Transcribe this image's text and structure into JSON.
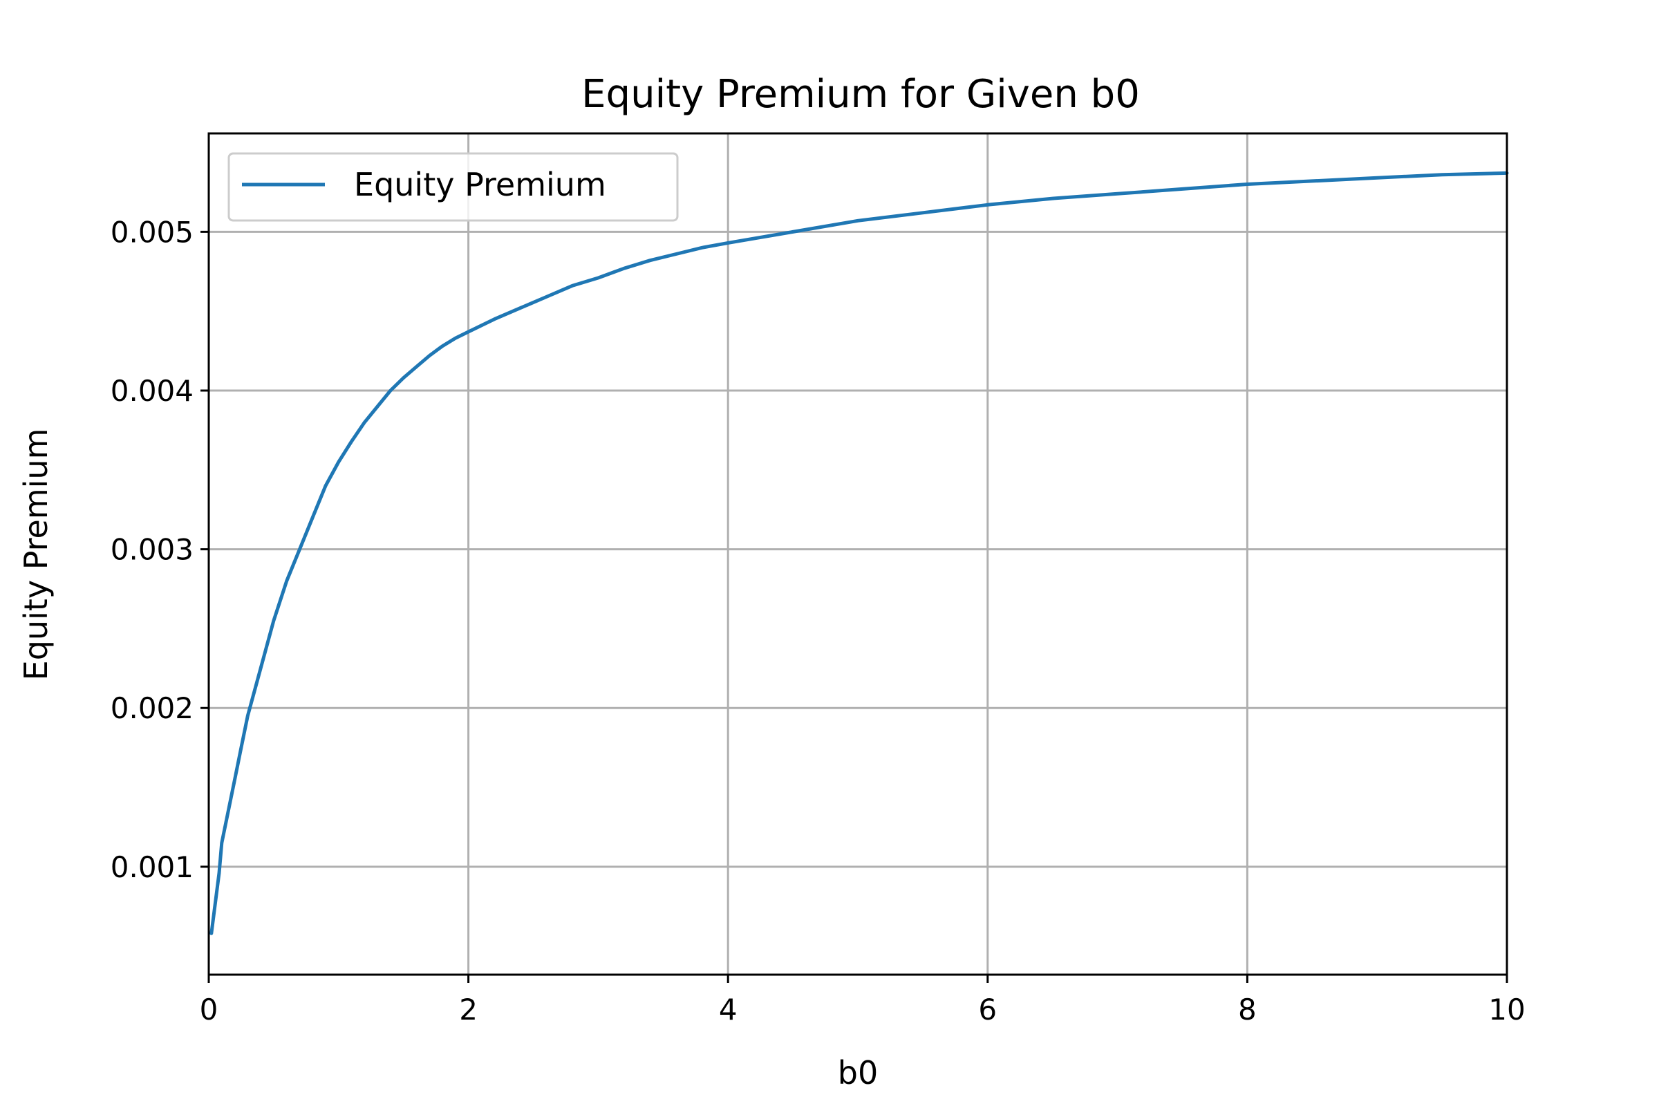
{
  "chart_data": {
    "type": "line",
    "title": "Equity Premium for Given b0",
    "xlabel": "b0",
    "ylabel": "Equity Premium",
    "xlim": [
      0,
      10
    ],
    "ylim": [
      0.00032,
      0.00562
    ],
    "xticks": [
      0,
      2,
      4,
      6,
      8,
      10
    ],
    "xtick_labels": [
      "0",
      "2",
      "4",
      "6",
      "8",
      "10"
    ],
    "yticks": [
      0.001,
      0.002,
      0.003,
      0.004,
      0.005
    ],
    "ytick_labels": [
      "0.001",
      "0.002",
      "0.003",
      "0.004",
      "0.005"
    ],
    "grid": true,
    "legend_position": "upper-left",
    "colors": {
      "line": "#1f77b4",
      "grid": "#b0b0b0",
      "axes": "#000000"
    },
    "series": [
      {
        "name": "Equity Premium",
        "x": [
          0.02,
          0.05,
          0.08,
          0.1,
          0.15,
          0.2,
          0.25,
          0.3,
          0.4,
          0.5,
          0.6,
          0.7,
          0.8,
          0.9,
          1.0,
          1.1,
          1.2,
          1.3,
          1.4,
          1.5,
          1.6,
          1.7,
          1.8,
          1.9,
          2.0,
          2.2,
          2.4,
          2.6,
          2.8,
          3.0,
          3.2,
          3.4,
          3.6,
          3.8,
          4.0,
          4.5,
          5.0,
          5.5,
          6.0,
          6.5,
          7.0,
          7.5,
          8.0,
          8.5,
          9.0,
          9.5,
          10.0
        ],
        "y": [
          0.00058,
          0.00077,
          0.00096,
          0.00115,
          0.00135,
          0.00155,
          0.00175,
          0.00195,
          0.00225,
          0.00255,
          0.0028,
          0.003,
          0.0032,
          0.0034,
          0.00355,
          0.00368,
          0.0038,
          0.0039,
          0.004,
          0.00408,
          0.00415,
          0.00422,
          0.00428,
          0.00433,
          0.00437,
          0.00445,
          0.00452,
          0.00459,
          0.00466,
          0.00471,
          0.00477,
          0.00482,
          0.00486,
          0.0049,
          0.00493,
          0.005,
          0.00507,
          0.00512,
          0.00517,
          0.00521,
          0.00524,
          0.00527,
          0.0053,
          0.00532,
          0.00534,
          0.00536,
          0.00537
        ]
      }
    ]
  }
}
